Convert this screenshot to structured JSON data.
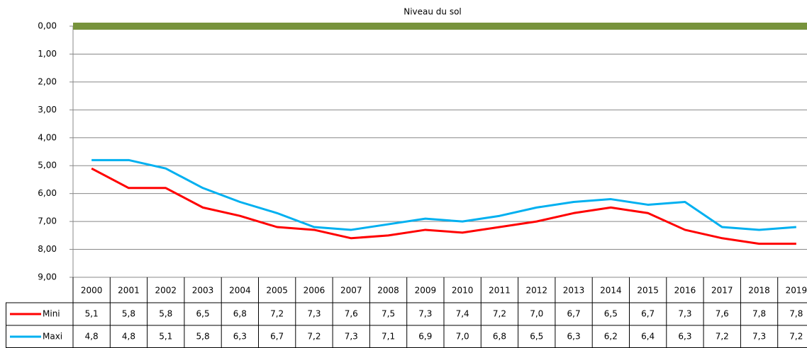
{
  "chart_data": {
    "type": "line",
    "annotation": "Niveau du sol",
    "categories": [
      "2000",
      "2001",
      "2002",
      "2003",
      "2004",
      "2005",
      "2006",
      "2007",
      "2008",
      "2009",
      "2010",
      "2011",
      "2012",
      "2013",
      "2014",
      "2015",
      "2016",
      "2017",
      "2018",
      "2019"
    ],
    "series": [
      {
        "name": "Mini",
        "color": "#ff0000",
        "values": [
          5.1,
          5.8,
          5.8,
          6.5,
          6.8,
          7.2,
          7.3,
          7.6,
          7.5,
          7.3,
          7.4,
          7.2,
          7.0,
          6.7,
          6.5,
          6.7,
          7.3,
          7.6,
          7.8,
          7.8
        ],
        "value_labels": [
          "5,1",
          "5,8",
          "5,8",
          "6,5",
          "6,8",
          "7,2",
          "7,3",
          "7,6",
          "7,5",
          "7,3",
          "7,4",
          "7,2",
          "7,0",
          "6,7",
          "6,5",
          "6,7",
          "7,3",
          "7,6",
          "7,8",
          "7,8"
        ]
      },
      {
        "name": "Maxi",
        "color": "#00b0f0",
        "values": [
          4.8,
          4.8,
          5.1,
          5.8,
          6.3,
          6.7,
          7.2,
          7.3,
          7.1,
          6.9,
          7.0,
          6.8,
          6.5,
          6.3,
          6.2,
          6.4,
          6.3,
          7.2,
          7.3,
          7.2
        ],
        "value_labels": [
          "4,8",
          "4,8",
          "5,1",
          "5,8",
          "6,3",
          "6,7",
          "7,2",
          "7,3",
          "7,1",
          "6,9",
          "7,0",
          "6,8",
          "6,5",
          "6,3",
          "6,2",
          "6,4",
          "6,3",
          "7,2",
          "7,3",
          "7,2"
        ]
      }
    ],
    "ylim": [
      0,
      9
    ],
    "y_inverted": true,
    "yticks": [
      {
        "value": 0,
        "label": "0,00"
      },
      {
        "value": 1,
        "label": "1,00"
      },
      {
        "value": 2,
        "label": "2,00"
      },
      {
        "value": 3,
        "label": "3,00"
      },
      {
        "value": 4,
        "label": "4,00"
      },
      {
        "value": 5,
        "label": "5,00"
      },
      {
        "value": 6,
        "label": "6,00"
      },
      {
        "value": 7,
        "label": "7,00"
      },
      {
        "value": 8,
        "label": "8,00"
      },
      {
        "value": 9,
        "label": "9,00"
      }
    ],
    "grid": true,
    "data_table": true
  }
}
